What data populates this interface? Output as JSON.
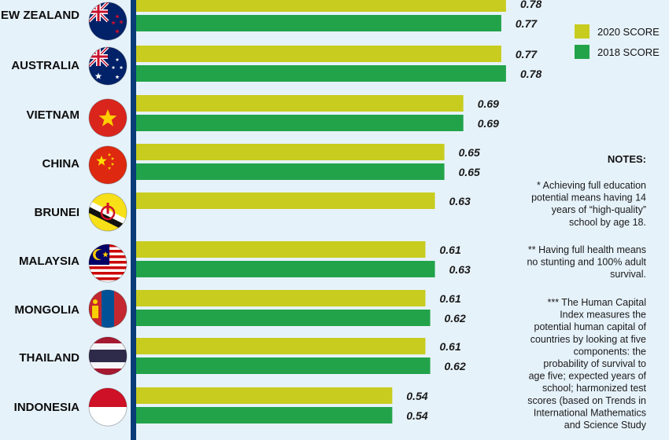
{
  "chart_data": {
    "type": "bar",
    "orientation": "horizontal",
    "categories": [
      "NEW ZEALAND",
      "AUSTRALIA",
      "VIETNAM",
      "CHINA",
      "BRUNEI",
      "MALAYSIA",
      "MONGOLIA",
      "THAILAND",
      "INDONESIA"
    ],
    "series": [
      {
        "name": "2020 SCORE",
        "color": "#c8cc1e",
        "values": [
          0.78,
          0.77,
          0.69,
          0.65,
          0.63,
          0.61,
          0.61,
          0.61,
          0.54
        ]
      },
      {
        "name": "2018 SCORE",
        "color": "#22a34a",
        "values": [
          0.77,
          0.78,
          0.69,
          0.65,
          null,
          0.63,
          0.62,
          0.62,
          0.54
        ]
      }
    ],
    "value_labels": [
      [
        "0.78",
        "0.77"
      ],
      [
        "0.77",
        "0.78"
      ],
      [
        "0.69",
        "0.69"
      ],
      [
        "0.65",
        "0.65"
      ],
      [
        "0.63",
        ""
      ],
      [
        "0.61",
        "0.63"
      ],
      [
        "0.61",
        "0.62"
      ],
      [
        "0.61",
        "0.62"
      ],
      [
        "0.54",
        "0.54"
      ]
    ],
    "xlim": [
      0,
      1
    ],
    "grid": false,
    "legend_position": "top-right"
  },
  "flags": [
    "new-zealand-flag",
    "australia-flag",
    "vietnam-flag",
    "china-flag",
    "brunei-flag",
    "malaysia-flag",
    "mongolia-flag",
    "thailand-flag",
    "indonesia-flag"
  ],
  "notes": {
    "title": "NOTES:",
    "items": [
      [
        "* Achieving full education",
        "potential means having 14",
        "years of “high-quality”",
        "school by age 18."
      ],
      [
        "** Having full health means",
        "no stunting and 100% adult",
        "survival."
      ],
      [
        "*** The Human Capital",
        "Index measures the",
        "potential human capital of",
        "countries by looking at five",
        "components: the",
        "probability of survival to",
        "age five; expected years of",
        "school; harmonized test",
        "scores (based on Trends in",
        "International Mathematics",
        "and Science Study"
      ]
    ]
  },
  "colors": {
    "background": "#e6f2fa",
    "axis": "#0a3d78",
    "series_2020": "#c8cc1e",
    "series_2018": "#22a34a"
  }
}
